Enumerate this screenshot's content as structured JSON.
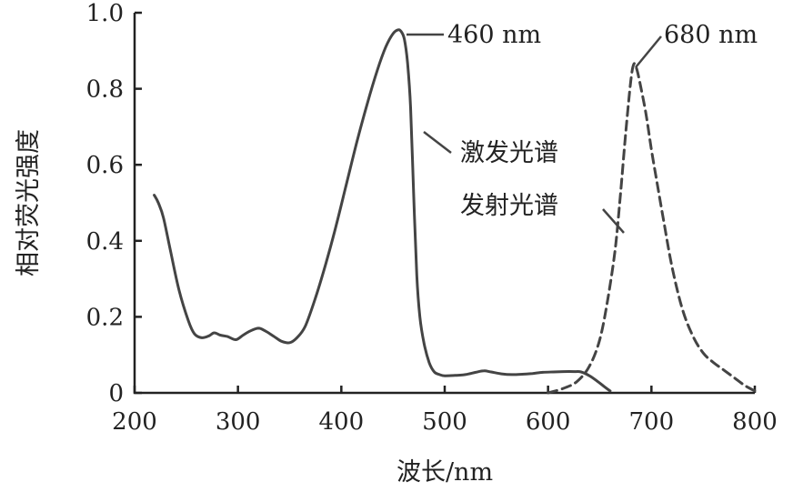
{
  "chart_data": {
    "type": "line",
    "title": "",
    "xlabel": "波长/nm",
    "ylabel": "相对荧光强度",
    "xlim": [
      200,
      800
    ],
    "ylim": [
      0,
      1.0
    ],
    "x_ticks": [
      200,
      300,
      400,
      500,
      600,
      700,
      800
    ],
    "x_tick_labels": [
      "200",
      "300",
      "400",
      "500",
      "600",
      "700",
      "800"
    ],
    "y_ticks": [
      0,
      0.2,
      0.4,
      0.6,
      0.8,
      1.0
    ],
    "y_tick_labels": [
      "0",
      "0.2",
      "0.4",
      "0.6",
      "0.8",
      "1.0"
    ],
    "grid": false,
    "series": [
      {
        "name": "激发光谱",
        "style": "solid",
        "color": "#444444",
        "x": [
          219,
          223,
          228,
          235,
          243,
          252,
          258,
          265,
          272,
          277,
          283,
          290,
          298,
          305,
          312,
          320,
          327,
          335,
          342,
          350,
          357,
          365,
          375,
          385,
          395,
          405,
          415,
          425,
          435,
          443,
          450,
          455,
          458,
          461,
          464,
          467,
          470,
          473,
          476,
          480,
          485,
          490,
          495,
          500,
          510,
          520,
          530,
          538,
          545,
          555,
          565,
          575,
          585,
          595,
          605,
          615,
          625,
          632,
          640,
          648,
          655,
          660
        ],
        "y": [
          0.52,
          0.5,
          0.46,
          0.37,
          0.27,
          0.19,
          0.155,
          0.145,
          0.15,
          0.158,
          0.152,
          0.148,
          0.14,
          0.152,
          0.163,
          0.17,
          0.162,
          0.148,
          0.136,
          0.132,
          0.145,
          0.175,
          0.25,
          0.34,
          0.44,
          0.55,
          0.66,
          0.76,
          0.85,
          0.91,
          0.945,
          0.955,
          0.95,
          0.93,
          0.87,
          0.75,
          0.52,
          0.31,
          0.2,
          0.13,
          0.08,
          0.055,
          0.048,
          0.045,
          0.046,
          0.048,
          0.054,
          0.058,
          0.055,
          0.05,
          0.048,
          0.049,
          0.051,
          0.054,
          0.055,
          0.056,
          0.056,
          0.055,
          0.045,
          0.03,
          0.015,
          0.005
        ]
      },
      {
        "name": "发射光谱",
        "style": "dashed",
        "color": "#444444",
        "x": [
          600,
          615,
          628,
          640,
          650,
          658,
          665,
          670,
          675,
          680,
          683,
          686,
          690,
          695,
          700,
          705,
          712,
          720,
          730,
          740,
          750,
          760,
          770,
          780,
          790,
          800
        ],
        "y": [
          0.0,
          0.012,
          0.03,
          0.07,
          0.14,
          0.25,
          0.38,
          0.52,
          0.68,
          0.82,
          0.865,
          0.85,
          0.8,
          0.73,
          0.64,
          0.56,
          0.45,
          0.33,
          0.22,
          0.15,
          0.105,
          0.08,
          0.06,
          0.04,
          0.02,
          0.005
        ]
      }
    ],
    "annotations": [
      {
        "text": "460 nm",
        "points_to_x": 460,
        "points_to_y": 0.955
      },
      {
        "text": "680 nm",
        "points_to_x": 680,
        "points_to_y": 0.865
      },
      {
        "text": "激发光谱",
        "points_to_series": "激发光谱"
      },
      {
        "text": "发射光谱",
        "points_to_series": "发射光谱"
      }
    ]
  }
}
